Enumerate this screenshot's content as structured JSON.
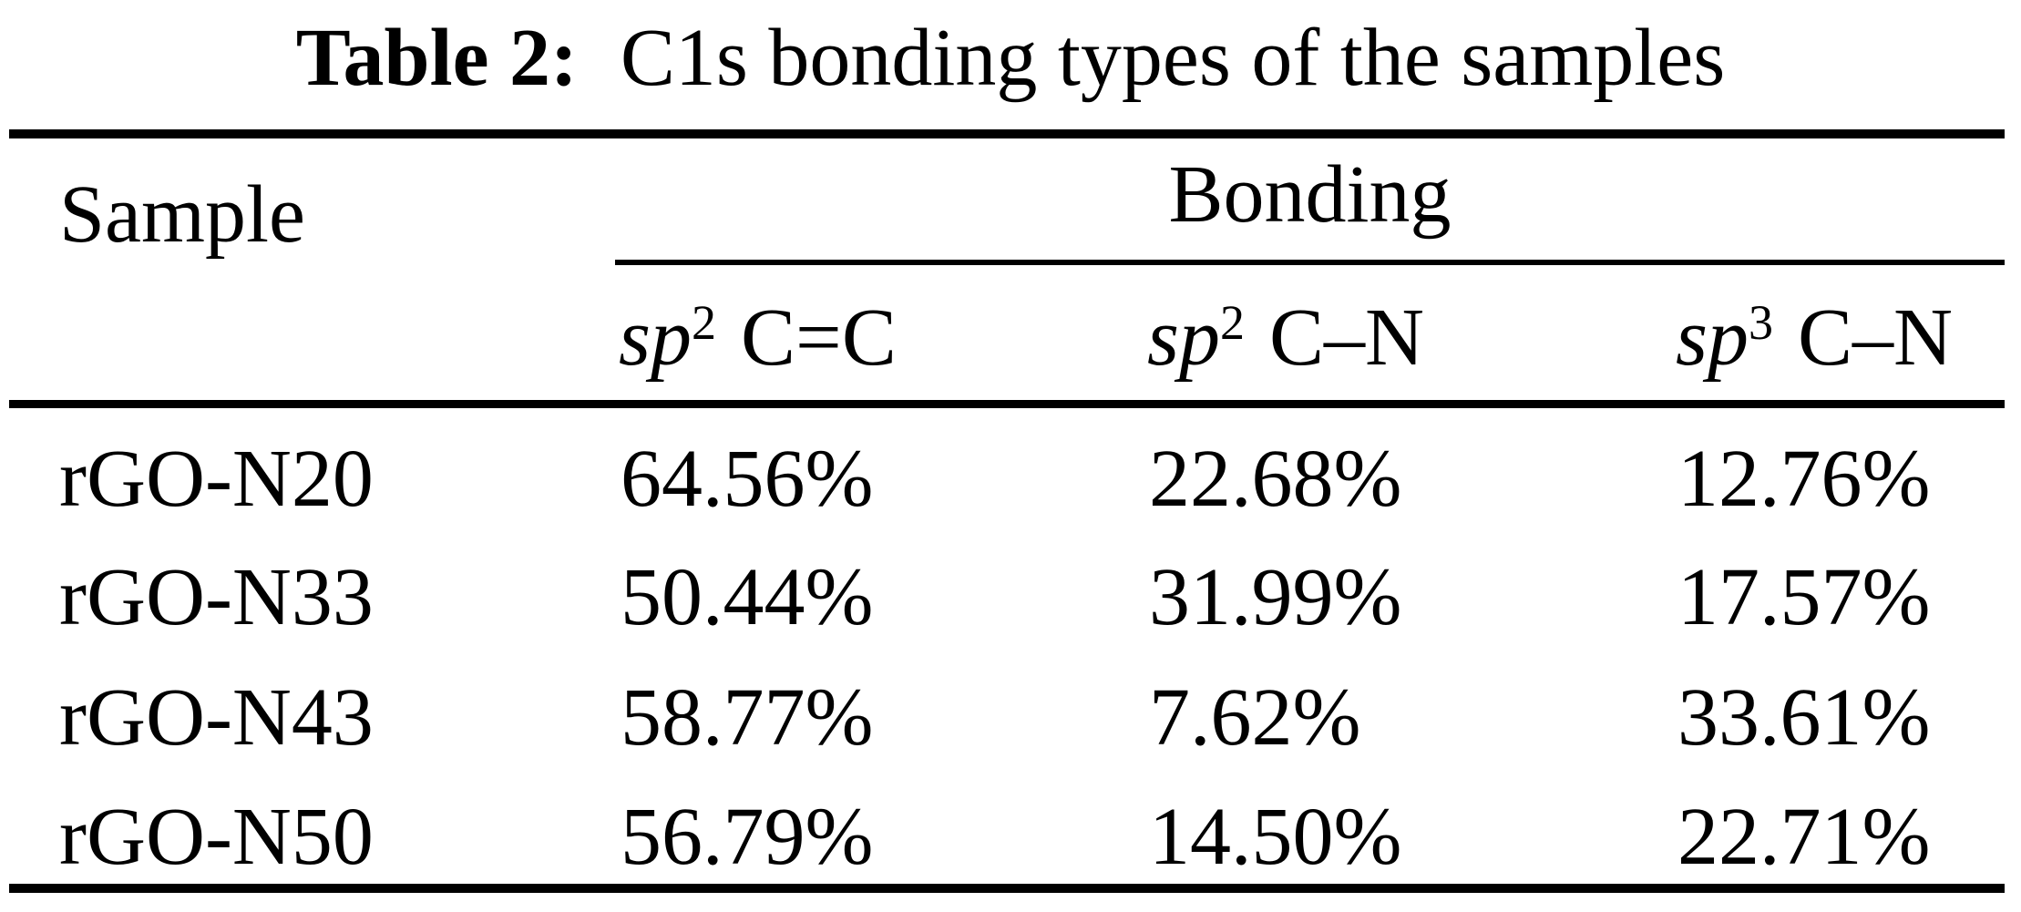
{
  "caption": {
    "label": "Table 2:",
    "text": "C1s bonding types of the samples"
  },
  "table": {
    "col1_header": "Sample",
    "group_header": "Bonding",
    "sub_headers": [
      {
        "base": "sp",
        "sup": "2",
        "bond": "C=C"
      },
      {
        "base": "sp",
        "sup": "2",
        "bond": "C–N"
      },
      {
        "base": "sp",
        "sup": "3",
        "bond": "C–N"
      }
    ],
    "rows": [
      {
        "sample": "rGO-N20",
        "values": [
          "64.56%",
          "22.68%",
          "12.76%"
        ]
      },
      {
        "sample": "rGO-N33",
        "values": [
          "50.44%",
          "31.99%",
          "17.57%"
        ]
      },
      {
        "sample": "rGO-N43",
        "values": [
          "58.77%",
          "7.62%",
          "33.61%"
        ]
      },
      {
        "sample": "rGO-N50",
        "values": [
          "56.79%",
          "14.50%",
          "22.71%"
        ]
      }
    ]
  },
  "colors": {
    "text": "#000000",
    "background": "#ffffff",
    "rule": "#000000"
  }
}
